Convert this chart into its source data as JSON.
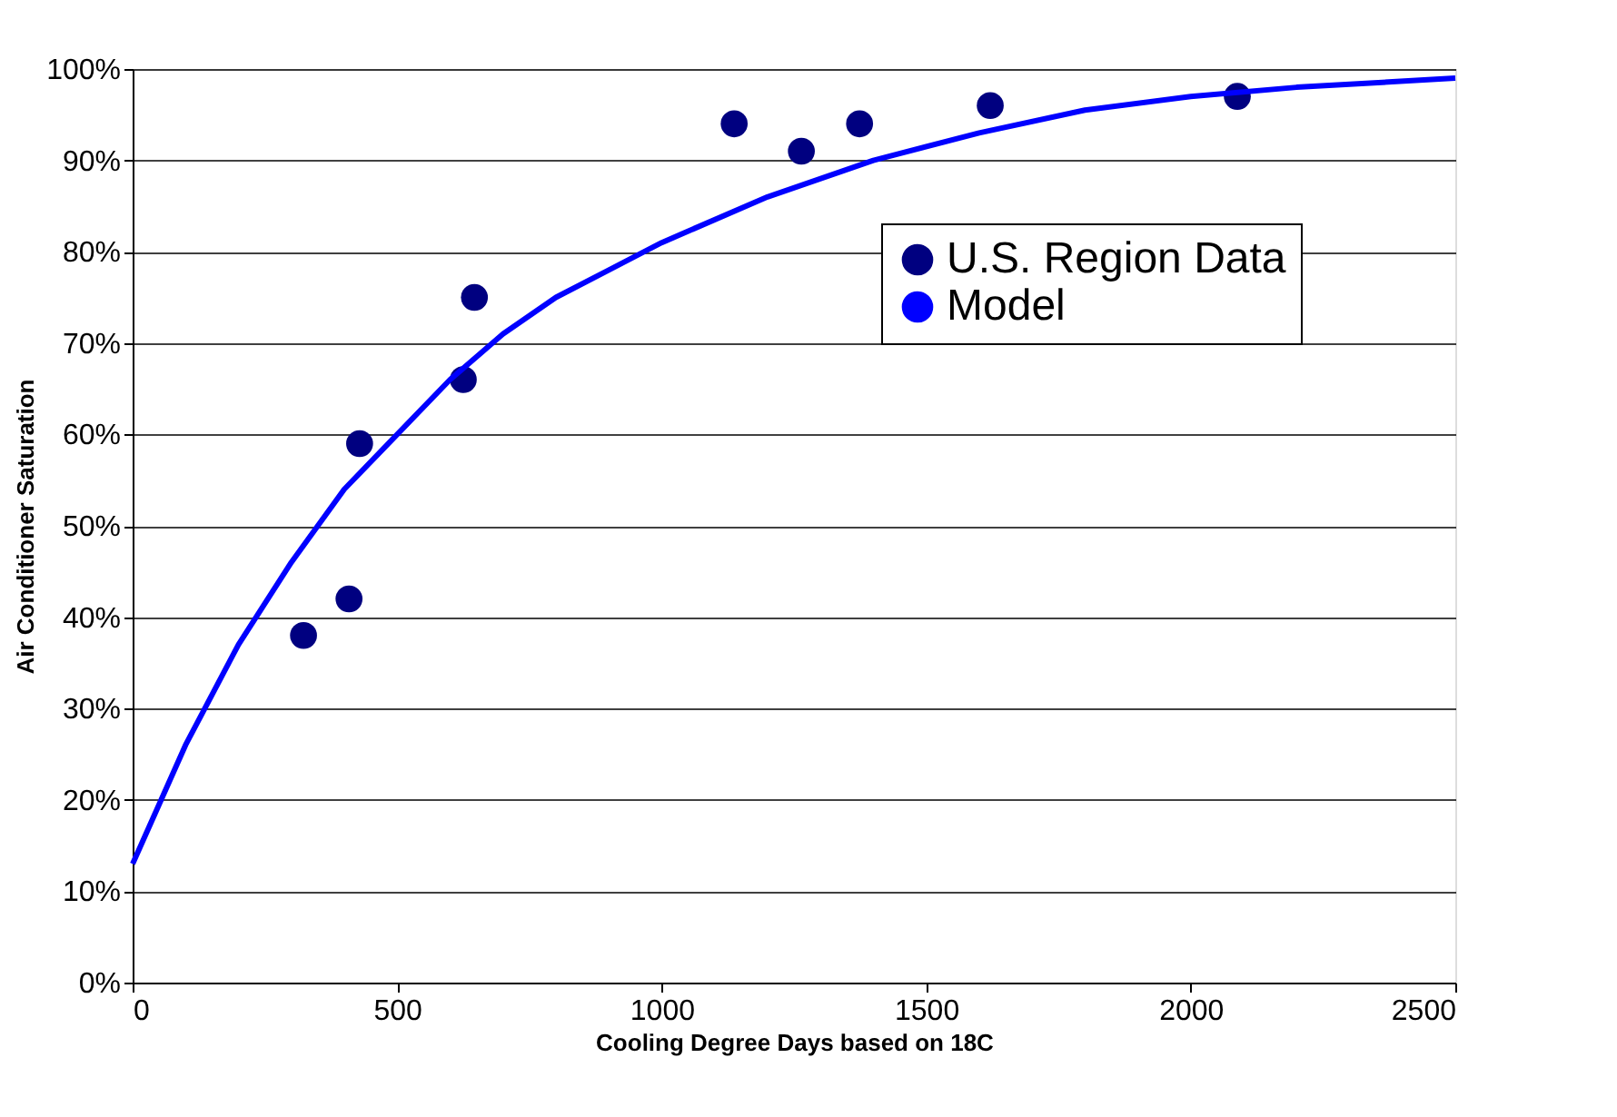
{
  "chart_data": {
    "type": "scatter",
    "xlabel": "Cooling Degree Days based on 18C",
    "ylabel": "Air Conditioner Saturation",
    "xlim": [
      0,
      2500
    ],
    "xticks": [
      0,
      500,
      1000,
      1500,
      2000,
      2500
    ],
    "ylim": [
      0,
      100
    ],
    "yticks": [
      {
        "value": 0,
        "label": "0%"
      },
      {
        "value": 10,
        "label": "10%"
      },
      {
        "value": 20,
        "label": "20%"
      },
      {
        "value": 30,
        "label": "30%"
      },
      {
        "value": 40,
        "label": "40%"
      },
      {
        "value": 50,
        "label": "50%"
      },
      {
        "value": 60,
        "label": "60%"
      },
      {
        "value": 70,
        "label": "70%"
      },
      {
        "value": 80,
        "label": "80%"
      },
      {
        "value": 90,
        "label": "90%"
      },
      {
        "value": 100,
        "label": "100%"
      }
    ],
    "grid": "y",
    "legend": "top right",
    "series": [
      {
        "name": "U.S. Region Data",
        "marker": "circle",
        "color": "#000080",
        "x": [
          323,
          409,
          429,
          625,
          646,
          1137,
          1264,
          1374,
          1621,
          2088
        ],
        "values": [
          38,
          42,
          59,
          66,
          75,
          94,
          91,
          94,
          96,
          97
        ]
      },
      {
        "name": "Model",
        "type": "line",
        "marker": "none",
        "line_style": "solid",
        "color": "#0000ff",
        "x": [
          0,
          100,
          200,
          300,
          400,
          500,
          600,
          700,
          800,
          900,
          1000,
          1200,
          1400,
          1600,
          1800,
          2000,
          2200,
          2500
        ],
        "values": [
          13,
          26,
          37,
          46,
          54,
          60,
          66,
          71,
          75,
          78,
          81,
          86,
          90,
          93,
          95.5,
          97,
          98,
          99
        ]
      }
    ]
  }
}
